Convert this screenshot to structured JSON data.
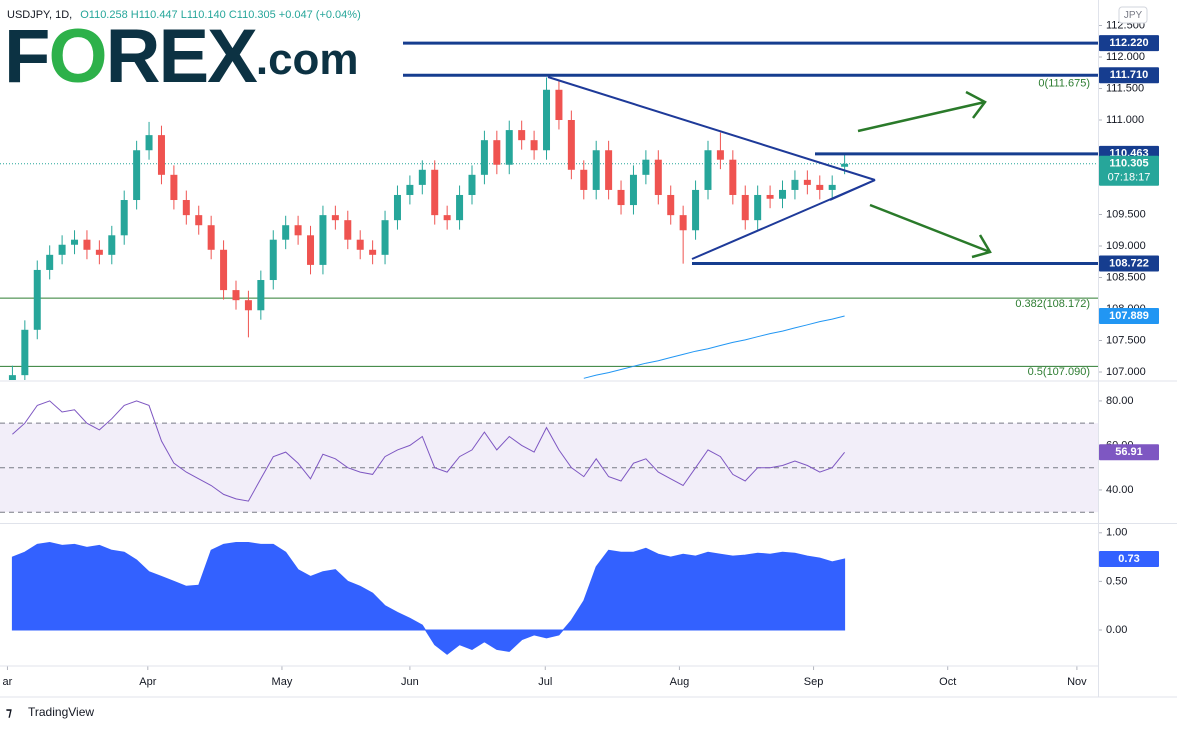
{
  "header": {
    "symbol": "USDJPY, 1D,",
    "ohlc": "O110.258 H110.447 L110.140 C110.305 +0.047 (+0.04%)",
    "currency": "JPY"
  },
  "logo": {
    "parts": [
      "F",
      "O",
      "REX",
      ".com"
    ]
  },
  "footer": "TradingView",
  "chart_data": [
    {
      "type": "candlestick",
      "up_color": "#26a69a",
      "down_color": "#ef5350",
      "open": [
        106.85,
        106.95,
        107.67,
        108.62,
        108.86,
        109.02,
        109.1,
        108.94,
        108.86,
        109.17,
        109.73,
        110.52,
        110.76,
        110.13,
        109.73,
        109.49,
        109.33,
        108.94,
        108.3,
        108.14,
        107.98,
        108.46,
        109.1,
        109.33,
        109.17,
        108.7,
        109.49,
        109.41,
        109.1,
        108.94,
        108.86,
        109.41,
        109.81,
        109.97,
        110.21,
        109.49,
        109.41,
        109.81,
        110.13,
        110.68,
        110.29,
        110.84,
        110.68,
        110.52,
        111.48,
        111.0,
        110.21,
        109.89,
        110.52,
        109.89,
        109.65,
        110.13,
        110.37,
        109.81,
        109.49,
        109.25,
        109.89,
        110.52,
        110.37,
        109.81,
        109.41,
        109.81,
        109.75,
        109.89,
        110.05,
        109.97,
        109.89,
        110.258
      ],
      "high": [
        107.1,
        107.82,
        108.77,
        109.01,
        109.17,
        109.25,
        109.25,
        109.09,
        109.32,
        109.88,
        110.67,
        110.97,
        110.91,
        110.28,
        109.88,
        109.64,
        109.48,
        109.09,
        108.45,
        108.29,
        108.61,
        109.25,
        109.48,
        109.48,
        109.32,
        109.64,
        109.64,
        109.56,
        109.25,
        109.09,
        109.56,
        109.96,
        110.12,
        110.36,
        110.36,
        109.64,
        109.96,
        110.28,
        110.83,
        110.83,
        110.99,
        110.99,
        110.83,
        111.675,
        111.63,
        111.15,
        110.36,
        110.67,
        110.67,
        110.04,
        110.28,
        110.52,
        110.52,
        109.96,
        109.64,
        110.04,
        110.67,
        110.8,
        110.52,
        109.96,
        109.96,
        109.96,
        110.04,
        110.2,
        110.2,
        110.12,
        110.12,
        110.447
      ],
      "low": [
        106.7,
        106.8,
        107.52,
        108.47,
        108.71,
        108.87,
        108.79,
        108.71,
        108.71,
        109.02,
        109.58,
        110.37,
        109.98,
        109.58,
        109.34,
        109.18,
        108.79,
        108.15,
        107.99,
        107.55,
        107.83,
        108.31,
        108.95,
        109.02,
        108.55,
        108.55,
        109.26,
        108.95,
        108.79,
        108.71,
        108.71,
        109.26,
        109.66,
        109.82,
        109.34,
        109.26,
        109.26,
        109.66,
        109.98,
        110.14,
        110.14,
        110.53,
        110.37,
        110.37,
        110.85,
        110.06,
        109.74,
        109.74,
        109.74,
        109.5,
        109.5,
        109.98,
        109.66,
        109.34,
        108.72,
        109.1,
        109.74,
        110.22,
        109.66,
        109.26,
        109.26,
        109.6,
        109.6,
        109.74,
        109.82,
        109.74,
        109.74,
        110.14
      ],
      "close": [
        106.95,
        107.67,
        108.62,
        108.86,
        109.02,
        109.1,
        108.94,
        108.86,
        109.17,
        109.73,
        110.52,
        110.76,
        110.13,
        109.73,
        109.49,
        109.33,
        108.94,
        108.3,
        108.14,
        107.98,
        108.46,
        109.1,
        109.33,
        109.17,
        108.7,
        109.49,
        109.41,
        109.1,
        108.94,
        108.86,
        109.41,
        109.81,
        109.97,
        110.21,
        109.49,
        109.41,
        109.81,
        110.13,
        110.68,
        110.29,
        110.84,
        110.68,
        110.52,
        111.48,
        111.0,
        110.21,
        109.89,
        110.52,
        109.89,
        109.65,
        110.13,
        110.37,
        109.81,
        109.49,
        109.25,
        109.89,
        110.52,
        110.37,
        109.81,
        109.41,
        109.81,
        109.75,
        109.89,
        110.05,
        109.97,
        109.89,
        109.97,
        110.305
      ],
      "series": [
        {
          "color": "#2196f3",
          "values": [
            null,
            null,
            null,
            null,
            null,
            null,
            null,
            null,
            null,
            null,
            null,
            null,
            null,
            null,
            null,
            null,
            null,
            null,
            null,
            null,
            null,
            null,
            null,
            null,
            null,
            null,
            null,
            null,
            null,
            null,
            null,
            null,
            null,
            null,
            null,
            null,
            null,
            null,
            null,
            null,
            null,
            null,
            null,
            null,
            null,
            null,
            106.9,
            106.95,
            106.99,
            107.04,
            107.09,
            107.14,
            107.18,
            107.23,
            107.28,
            107.33,
            107.37,
            107.42,
            107.47,
            107.51,
            107.56,
            107.61,
            107.65,
            107.7,
            107.75,
            107.8,
            107.84,
            107.889
          ]
        }
      ],
      "countdown": "07:18:17",
      "last_color": "#26a69a",
      "xlim": [
        -1,
        87.4
      ],
      "xticks": [
        {
          "value": -0.4,
          "label": "ar"
        },
        {
          "value": 10.9,
          "label": "Apr"
        },
        {
          "value": 21.7,
          "label": "May"
        },
        {
          "value": 32,
          "label": "Jun"
        },
        {
          "value": 42.9,
          "label": "Jul"
        },
        {
          "value": 53.7,
          "label": "Aug"
        },
        {
          "value": 64.5,
          "label": "Sep"
        },
        {
          "value": 75.3,
          "label": "Oct"
        },
        {
          "value": 85.7,
          "label": "Nov"
        }
      ],
      "ylim": [
        106.873,
        112.905
      ],
      "yticks": [
        {
          "value": 112.5,
          "label": "112.500"
        },
        {
          "value": 112,
          "label": "112.000"
        },
        {
          "value": 111.5,
          "label": "111.500"
        },
        {
          "value": 111,
          "label": "111.000"
        },
        {
          "value": 109.5,
          "label": "109.500"
        },
        {
          "value": 109,
          "label": "109.000"
        },
        {
          "value": 108.5,
          "label": "108.500"
        },
        {
          "value": 108,
          "label": "108.000"
        },
        {
          "value": 107.5,
          "label": "107.500"
        },
        {
          "value": 107,
          "label": "107.000"
        }
      ],
      "levels": [
        {
          "value": 112.22,
          "label": "112.220"
        },
        {
          "value": 111.71,
          "label": "111.710"
        },
        {
          "value": 110.463,
          "label": "110.463"
        },
        {
          "value": 108.722,
          "label": "108.722"
        }
      ],
      "level_color": "#163d8f",
      "fib": [
        {
          "value": 111.675,
          "label": "0(111.675)"
        },
        {
          "value": 108.172,
          "label": "0.382(108.172)"
        },
        {
          "value": 107.09,
          "label": "0.5(107.090)"
        }
      ],
      "fib_color": "#2e7d32"
    },
    {
      "type": "line",
      "color": "#7e57c2",
      "values": [
        65,
        70,
        78,
        80,
        75,
        76,
        70,
        67,
        72,
        78,
        80,
        78,
        62,
        52,
        48,
        45,
        42,
        38,
        36,
        35,
        45,
        55,
        57,
        52,
        45,
        56,
        54,
        50,
        48,
        47,
        55,
        58,
        60,
        64,
        50,
        48,
        55,
        58,
        66,
        58,
        64,
        60,
        57,
        68,
        58,
        50,
        46,
        54,
        46,
        44,
        52,
        54,
        48,
        45,
        42,
        50,
        58,
        55,
        47,
        44,
        50,
        50,
        51,
        53,
        51,
        48,
        50,
        56.91
      ],
      "ylim": [
        25.6,
        88.5
      ],
      "yticks": [
        {
          "value": 80,
          "label": "80.00"
        },
        {
          "value": 60,
          "label": "60.00"
        },
        {
          "value": 40,
          "label": "40.00"
        }
      ],
      "bands": [
        70,
        50,
        30
      ]
    },
    {
      "type": "area",
      "color": "#3361ff",
      "values": [
        0.75,
        0.8,
        0.88,
        0.9,
        0.87,
        0.88,
        0.85,
        0.87,
        0.82,
        0.8,
        0.72,
        0.6,
        0.55,
        0.5,
        0.45,
        0.46,
        0.82,
        0.88,
        0.9,
        0.9,
        0.88,
        0.88,
        0.8,
        0.62,
        0.55,
        0.6,
        0.62,
        0.5,
        0.45,
        0.38,
        0.25,
        0.18,
        0.12,
        0.05,
        -0.15,
        -0.25,
        -0.15,
        -0.2,
        -0.12,
        -0.2,
        -0.22,
        -0.1,
        -0.05,
        -0.08,
        -0.05,
        0.1,
        0.3,
        0.65,
        0.82,
        0.8,
        0.8,
        0.84,
        0.78,
        0.75,
        0.78,
        0.76,
        0.8,
        0.78,
        0.76,
        0.77,
        0.79,
        0.78,
        0.8,
        0.79,
        0.76,
        0.74,
        0.7,
        0.73
      ],
      "ylim": [
        -0.36,
        1.08
      ],
      "yticks": [
        {
          "value": 1,
          "label": "1.00"
        },
        {
          "value": 0.5,
          "label": "0.50"
        },
        {
          "value": 0,
          "label": "0.00"
        }
      ]
    }
  ]
}
